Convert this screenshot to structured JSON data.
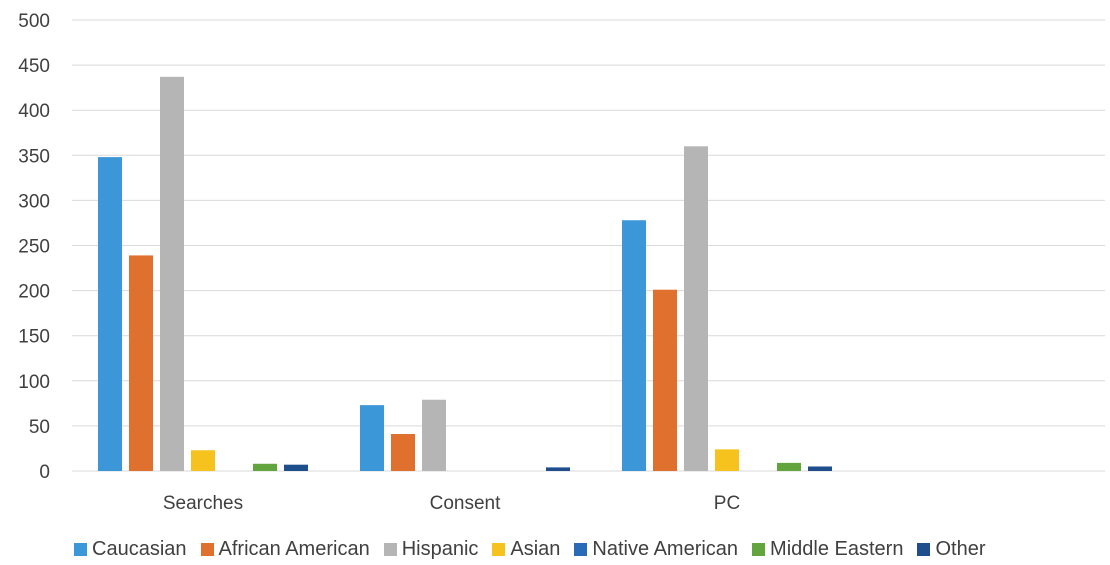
{
  "chart_data": {
    "type": "bar",
    "categories": [
      "Searches",
      "Consent",
      "PC"
    ],
    "series": [
      {
        "name": "Caucasian",
        "color": "#3b97d8",
        "values": [
          348,
          73,
          278
        ]
      },
      {
        "name": "African American",
        "color": "#e0702e",
        "values": [
          239,
          41,
          201
        ]
      },
      {
        "name": "Hispanic",
        "color": "#b5b5b5",
        "values": [
          437,
          79,
          360
        ]
      },
      {
        "name": "Asian",
        "color": "#f6c21d",
        "values": [
          23,
          0,
          24
        ]
      },
      {
        "name": "Native American",
        "color": "#2a6bb8",
        "values": [
          0,
          0,
          0
        ]
      },
      {
        "name": "Middle Eastern",
        "color": "#62a53e",
        "values": [
          8,
          0,
          9
        ]
      },
      {
        "name": "Other",
        "color": "#1f4e8c",
        "values": [
          7,
          4,
          5
        ]
      }
    ],
    "yticks": [
      "0",
      "50",
      "100",
      "150",
      "200",
      "250",
      "300",
      "350",
      "400",
      "450",
      "500"
    ],
    "ylim": [
      0,
      500
    ],
    "grid": true,
    "legend_position": "bottom"
  }
}
